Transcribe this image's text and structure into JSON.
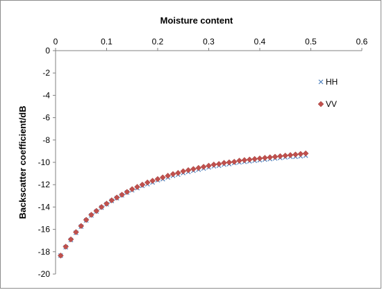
{
  "chart_data": {
    "type": "scatter",
    "xlabel": "Moisture content",
    "ylabel": "Backscatter coefficient/dB",
    "xlim": [
      0,
      0.6
    ],
    "ylim": [
      -20,
      0
    ],
    "x_ticks": [
      "0",
      "0.1",
      "0.2",
      "0.3",
      "0.4",
      "0.5",
      "0.6"
    ],
    "y_ticks": [
      "0",
      "-2",
      "-4",
      "-6",
      "-8",
      "-10",
      "-12",
      "-14",
      "-16",
      "-18",
      "-20"
    ],
    "x_axis_position": "top",
    "grid": false,
    "legend_position": "right",
    "series": [
      {
        "name": "HH",
        "marker": "x",
        "color": "#4f81bd",
        "x": [
          0.01,
          0.02,
          0.03,
          0.04,
          0.05,
          0.06,
          0.07,
          0.08,
          0.09,
          0.1,
          0.11,
          0.12,
          0.13,
          0.14,
          0.15,
          0.16,
          0.17,
          0.18,
          0.19,
          0.2,
          0.21,
          0.22,
          0.23,
          0.24,
          0.25,
          0.26,
          0.27,
          0.28,
          0.29,
          0.3,
          0.31,
          0.32,
          0.33,
          0.34,
          0.35,
          0.36,
          0.37,
          0.38,
          0.39,
          0.4,
          0.41,
          0.42,
          0.43,
          0.44,
          0.45,
          0.46,
          0.47,
          0.48,
          0.49
        ],
        "y": [
          -18.35,
          -17.6,
          -16.95,
          -16.3,
          -15.75,
          -15.2,
          -14.75,
          -14.4,
          -14.05,
          -13.75,
          -13.45,
          -13.2,
          -12.95,
          -12.7,
          -12.5,
          -12.3,
          -12.1,
          -11.95,
          -11.8,
          -11.6,
          -11.5,
          -11.35,
          -11.2,
          -11.1,
          -10.95,
          -10.85,
          -10.75,
          -10.65,
          -10.55,
          -10.45,
          -10.35,
          -10.3,
          -10.2,
          -10.15,
          -10.05,
          -10.0,
          -9.95,
          -9.9,
          -9.85,
          -9.8,
          -9.75,
          -9.7,
          -9.65,
          -9.6,
          -9.55,
          -9.5,
          -9.5,
          -9.45,
          -9.4
        ]
      },
      {
        "name": "VV",
        "marker": "diamond",
        "color": "#c0504d",
        "x": [
          0.01,
          0.02,
          0.03,
          0.04,
          0.05,
          0.06,
          0.07,
          0.08,
          0.09,
          0.1,
          0.11,
          0.12,
          0.13,
          0.14,
          0.15,
          0.16,
          0.17,
          0.18,
          0.19,
          0.2,
          0.21,
          0.22,
          0.23,
          0.24,
          0.25,
          0.26,
          0.27,
          0.28,
          0.29,
          0.3,
          0.31,
          0.32,
          0.33,
          0.34,
          0.35,
          0.36,
          0.37,
          0.38,
          0.39,
          0.4,
          0.41,
          0.42,
          0.43,
          0.44,
          0.45,
          0.46,
          0.47,
          0.48,
          0.49
        ],
        "y": [
          -18.35,
          -17.55,
          -16.9,
          -16.25,
          -15.7,
          -15.15,
          -14.7,
          -14.35,
          -14.0,
          -13.7,
          -13.4,
          -13.15,
          -12.9,
          -12.65,
          -12.4,
          -12.2,
          -12.0,
          -11.8,
          -11.65,
          -11.5,
          -11.35,
          -11.2,
          -11.05,
          -10.95,
          -10.8,
          -10.7,
          -10.6,
          -10.5,
          -10.4,
          -10.3,
          -10.2,
          -10.15,
          -10.05,
          -10.0,
          -9.95,
          -9.85,
          -9.8,
          -9.75,
          -9.7,
          -9.65,
          -9.6,
          -9.55,
          -9.5,
          -9.45,
          -9.4,
          -9.35,
          -9.3,
          -9.25,
          -9.2
        ]
      }
    ]
  }
}
